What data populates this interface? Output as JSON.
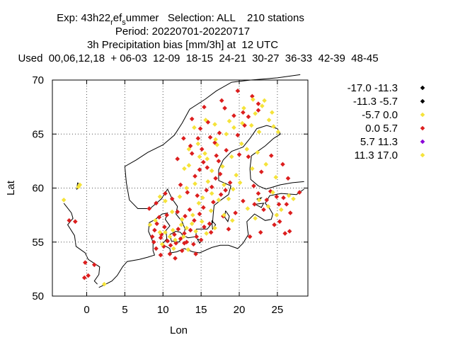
{
  "titles": {
    "line1": "Exp: 43h22_r ef_s ummer   Selection: ALL    210 stations",
    "line2": "Period: 20220701-20220717",
    "line3": "3h Precipitation bias [mm/3h] at  12 UTC",
    "line4": "Used  00,06,12,18  + 06-03  12-09  18-15  24-21  30-27  36-33  42-39  48-45"
  },
  "chart_data": {
    "type": "scatter",
    "xlabel": "Lon",
    "ylabel": "Lat",
    "xlim": [
      -4.5,
      29
    ],
    "ylim": [
      50,
      70
    ],
    "x_ticks": [
      0,
      5,
      10,
      15,
      20,
      25
    ],
    "y_ticks": [
      50,
      55,
      60,
      65,
      70
    ],
    "grid": true,
    "legend_position": "right",
    "legend": [
      {
        "label": "-17.0 -11.3",
        "color": "#000000"
      },
      {
        "label": "-11.3 -5.7",
        "color": "#000000"
      },
      {
        "label": "-5.7 0.0",
        "color": "#f5e33a"
      },
      {
        "label": "0.0 5.7",
        "color": "#dc1e1e"
      },
      {
        "label": "5.7 11.3",
        "color": "#8b00d8"
      },
      {
        "label": "11.3 17.0",
        "color": "#f5e33a"
      }
    ],
    "series": [
      {
        "color": "#dc1e1e",
        "points": [
          [
            -2.3,
            57.0
          ],
          [
            -1.5,
            56.9
          ],
          [
            -0.2,
            53.1
          ],
          [
            0.2,
            51.9
          ],
          [
            1.0,
            52.9
          ],
          [
            -0.3,
            51.7
          ],
          [
            21.7,
            68.5
          ],
          [
            22.5,
            67.8
          ],
          [
            19.3,
            66.7
          ],
          [
            20.5,
            67.0
          ],
          [
            21.2,
            66.6
          ],
          [
            18.1,
            67.4
          ],
          [
            15.9,
            66.1
          ],
          [
            17.4,
            65.1
          ],
          [
            16.8,
            64.2
          ],
          [
            15.1,
            63.6
          ],
          [
            16.2,
            64.7
          ],
          [
            14.6,
            64.6
          ],
          [
            13.8,
            63.2
          ],
          [
            15.3,
            62.4
          ],
          [
            17.3,
            62.5
          ],
          [
            14.2,
            61.1
          ],
          [
            15.8,
            61.9
          ],
          [
            16.9,
            60.9
          ],
          [
            13.2,
            59.6
          ],
          [
            12.3,
            60.3
          ],
          [
            14.5,
            59.3
          ],
          [
            15.7,
            59.8
          ],
          [
            17.6,
            59.4
          ],
          [
            18.2,
            59.8
          ],
          [
            16.6,
            58.7
          ],
          [
            15.3,
            58.2
          ],
          [
            13.5,
            58.0
          ],
          [
            12.9,
            57.4
          ],
          [
            11.9,
            57.8
          ],
          [
            14.1,
            57.0
          ],
          [
            15.4,
            56.4
          ],
          [
            13.6,
            56.1
          ],
          [
            12.8,
            55.8
          ],
          [
            14.4,
            55.5
          ],
          [
            9.2,
            56.7
          ],
          [
            8.9,
            56.1
          ],
          [
            10.2,
            56.4
          ],
          [
            11.5,
            55.7
          ],
          [
            12.3,
            55.3
          ],
          [
            10.6,
            55.1
          ],
          [
            9.7,
            55.4
          ],
          [
            8.6,
            55.5
          ],
          [
            11.0,
            54.7
          ],
          [
            11.7,
            54.9
          ],
          [
            10.1,
            54.6
          ],
          [
            12.8,
            54.9
          ],
          [
            9.5,
            57.3
          ],
          [
            10.5,
            57.5
          ],
          [
            17.9,
            57.4
          ],
          [
            18.6,
            56.2
          ],
          [
            19.5,
            57.7
          ],
          [
            22.0,
            58.5
          ],
          [
            23.6,
            58.9
          ],
          [
            24.9,
            59.2
          ],
          [
            26.2,
            58.5
          ],
          [
            26.7,
            57.7
          ],
          [
            25.3,
            56.9
          ],
          [
            27.9,
            59.6
          ],
          [
            26.6,
            56.0
          ],
          [
            22.8,
            55.9
          ],
          [
            21.4,
            55.5
          ],
          [
            25.8,
            59.1
          ],
          [
            24.1,
            59.7
          ],
          [
            23.2,
            58.0
          ],
          [
            22.5,
            67.2
          ],
          [
            20.7,
            65.8
          ],
          [
            19.8,
            64.9
          ],
          [
            18.3,
            63.5
          ],
          [
            17.0,
            63.0
          ],
          [
            12.7,
            64.6
          ],
          [
            13.6,
            63.9
          ],
          [
            14.9,
            65.5
          ],
          [
            18.8,
            60.5
          ],
          [
            17.5,
            61.3
          ],
          [
            16.4,
            60.1
          ],
          [
            20.0,
            63.1
          ],
          [
            21.2,
            62.9
          ],
          [
            22.9,
            61.5
          ],
          [
            24.2,
            63.0
          ],
          [
            25.7,
            62.2
          ],
          [
            26.4,
            60.9
          ],
          [
            14.8,
            57.6
          ],
          [
            16.1,
            56.7
          ],
          [
            12.0,
            56.2
          ],
          [
            11.2,
            59.0
          ],
          [
            10.3,
            59.5
          ],
          [
            9.1,
            58.6
          ],
          [
            8.2,
            58.1
          ],
          [
            13.1,
            55.0
          ],
          [
            14.0,
            54.8
          ],
          [
            15.0,
            55.2
          ],
          [
            16.3,
            55.9
          ],
          [
            9.8,
            55.7
          ],
          [
            8.8,
            55.0
          ],
          [
            9.1,
            54.4
          ],
          [
            10.9,
            53.9
          ],
          [
            12.5,
            54.2
          ],
          [
            14.3,
            53.9
          ],
          [
            11.6,
            53.5
          ],
          [
            9.7,
            53.8
          ],
          [
            13.8,
            66.4
          ],
          [
            15.4,
            67.5
          ],
          [
            17.7,
            68.1
          ],
          [
            19.8,
            69.0
          ],
          [
            11.9,
            62.7
          ],
          [
            14.8,
            61.7
          ],
          [
            25.2,
            58.5
          ],
          [
            26.0,
            55.8
          ],
          [
            24.6,
            56.6
          ],
          [
            20.5,
            58.8
          ],
          [
            21.9,
            60.2
          ],
          [
            22.5,
            59.5
          ]
        ]
      },
      {
        "color": "#f5e33a",
        "points": [
          [
            -3.0,
            58.9
          ],
          [
            -1.1,
            60.1
          ],
          [
            -0.9,
            60.3
          ],
          [
            2.3,
            51.1
          ],
          [
            21.8,
            68.2
          ],
          [
            23.0,
            67.6
          ],
          [
            22.1,
            66.9
          ],
          [
            20.4,
            66.0
          ],
          [
            21.6,
            65.8
          ],
          [
            23.9,
            66.3
          ],
          [
            24.5,
            65.7
          ],
          [
            22.6,
            65.2
          ],
          [
            19.3,
            65.6
          ],
          [
            18.3,
            65.0
          ],
          [
            16.9,
            64.5
          ],
          [
            15.5,
            63.2
          ],
          [
            14.8,
            62.9
          ],
          [
            13.4,
            62.1
          ],
          [
            15.8,
            62.7
          ],
          [
            16.4,
            61.6
          ],
          [
            17.8,
            62.0
          ],
          [
            14.2,
            60.4
          ],
          [
            13.1,
            60.0
          ],
          [
            12.2,
            59.2
          ],
          [
            15.2,
            59.1
          ],
          [
            16.4,
            59.5
          ],
          [
            17.3,
            58.9
          ],
          [
            18.6,
            59.0
          ],
          [
            16.3,
            57.9
          ],
          [
            15.1,
            56.9
          ],
          [
            13.8,
            56.7
          ],
          [
            13.1,
            56.3
          ],
          [
            14.3,
            56.0
          ],
          [
            12.7,
            55.5
          ],
          [
            11.6,
            55.2
          ],
          [
            10.9,
            55.5
          ],
          [
            10.3,
            55.9
          ],
          [
            9.6,
            55.9
          ],
          [
            11.3,
            56.1
          ],
          [
            12.4,
            56.6
          ],
          [
            9.9,
            54.8
          ],
          [
            11.4,
            54.4
          ],
          [
            13.3,
            54.3
          ],
          [
            18.0,
            57.5
          ],
          [
            19.1,
            57.0
          ],
          [
            21.1,
            58.1
          ],
          [
            22.6,
            58.9
          ],
          [
            23.8,
            58.3
          ],
          [
            24.4,
            59.6
          ],
          [
            25.5,
            58.0
          ],
          [
            26.5,
            59.3
          ],
          [
            27.1,
            59.0
          ],
          [
            24.9,
            57.5
          ],
          [
            22.1,
            57.2
          ],
          [
            20.3,
            64.1
          ],
          [
            21.0,
            63.6
          ],
          [
            22.4,
            63.3
          ],
          [
            19.0,
            62.9
          ],
          [
            17.1,
            64.0
          ],
          [
            14.6,
            64.1
          ],
          [
            13.4,
            63.6
          ],
          [
            12.8,
            61.8
          ],
          [
            18.0,
            60.3
          ],
          [
            19.2,
            59.9
          ],
          [
            20.1,
            60.5
          ],
          [
            15.9,
            60.6
          ],
          [
            14.7,
            58.6
          ],
          [
            13.9,
            57.5
          ],
          [
            12.5,
            57.1
          ],
          [
            11.2,
            57.8
          ],
          [
            10.3,
            58.8
          ],
          [
            9.6,
            59.2
          ],
          [
            25.1,
            65.2
          ],
          [
            24.3,
            67.0
          ],
          [
            23.3,
            68.1
          ],
          [
            20.6,
            67.4
          ],
          [
            18.7,
            66.2
          ],
          [
            16.8,
            65.9
          ],
          [
            15.6,
            66.3
          ],
          [
            14.1,
            65.6
          ],
          [
            19.6,
            61.2
          ],
          [
            21.7,
            61.8
          ],
          [
            23.5,
            62.2
          ],
          [
            24.8,
            61.0
          ],
          [
            9.0,
            57.0
          ],
          [
            8.3,
            56.6
          ],
          [
            16.8,
            56.3
          ],
          [
            15.7,
            55.8
          ]
        ]
      }
    ]
  }
}
